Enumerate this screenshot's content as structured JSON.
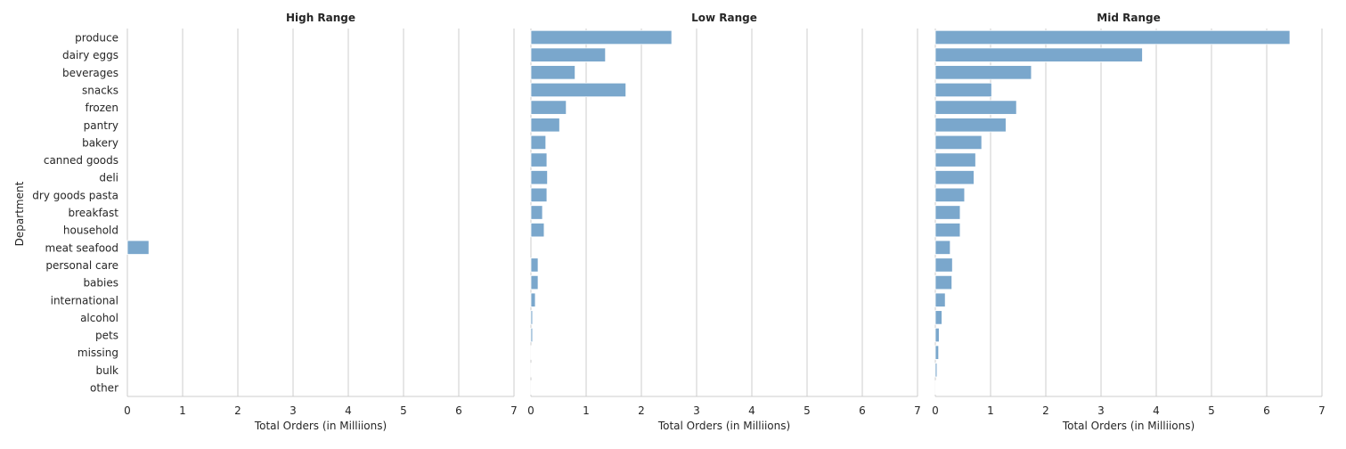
{
  "chart_data": {
    "type": "bar",
    "orientation": "horizontal",
    "ylabel": "Department",
    "xlabel": "Total Orders (in Milliions)",
    "xlim": [
      0,
      7
    ],
    "xticks": [
      "0",
      "1",
      "2",
      "3",
      "4",
      "5",
      "6",
      "7"
    ],
    "grid": "vertical",
    "bar_color": "#7aa7cc",
    "categories": [
      "produce",
      "dairy eggs",
      "beverages",
      "snacks",
      "frozen",
      "pantry",
      "bakery",
      "canned goods",
      "deli",
      "dry goods pasta",
      "breakfast",
      "household",
      "meat seafood",
      "personal care",
      "babies",
      "international",
      "alcohol",
      "pets",
      "missing",
      "bulk",
      "other"
    ],
    "panels": [
      {
        "title": "High Range",
        "values": [
          0,
          0,
          0,
          0,
          0,
          0,
          0,
          0,
          0,
          0,
          0,
          0,
          0.39,
          0,
          0,
          0,
          0,
          0,
          0,
          0,
          0
        ]
      },
      {
        "title": "Low Range",
        "values": [
          2.55,
          1.35,
          0.8,
          1.72,
          0.64,
          0.52,
          0.27,
          0.29,
          0.3,
          0.29,
          0.21,
          0.24,
          0,
          0.13,
          0.13,
          0.08,
          0.03,
          0.03,
          0.01,
          0.01,
          0.01
        ]
      },
      {
        "title": "Mid Range",
        "values": [
          6.42,
          3.75,
          1.74,
          1.02,
          1.47,
          1.28,
          0.84,
          0.73,
          0.7,
          0.53,
          0.45,
          0.45,
          0.27,
          0.31,
          0.3,
          0.18,
          0.12,
          0.07,
          0.06,
          0.03,
          0.01
        ]
      }
    ]
  }
}
